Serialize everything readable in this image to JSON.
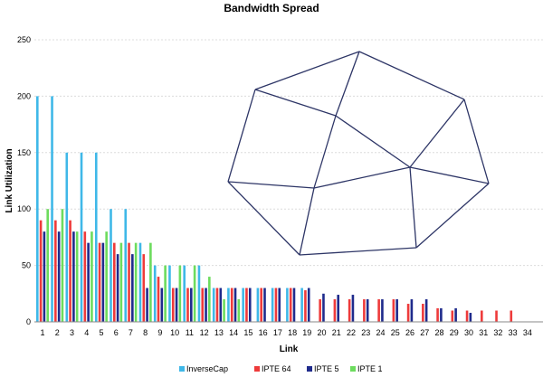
{
  "chart_data": {
    "type": "bar",
    "title": "Bandwidth Spread",
    "xlabel": "Link",
    "ylabel": "Link Utilization",
    "ylim": [
      0,
      250
    ],
    "yticks": [
      0,
      50,
      100,
      150,
      200,
      250
    ],
    "grid": "horizontal",
    "legend_position": "bottom",
    "categories": [
      "1",
      "2",
      "3",
      "4",
      "5",
      "6",
      "7",
      "8",
      "9",
      "10",
      "11",
      "12",
      "13",
      "14",
      "15",
      "16",
      "17",
      "18",
      "19",
      "20",
      "21",
      "22",
      "23",
      "24",
      "25",
      "26",
      "27",
      "28",
      "29",
      "30",
      "31",
      "32",
      "33",
      "34"
    ],
    "series": [
      {
        "name": "InverseCap",
        "color": "#3fb8e8",
        "values": [
          200,
          200,
          150,
          150,
          150,
          100,
          100,
          70,
          50,
          50,
          50,
          50,
          30,
          30,
          30,
          30,
          30,
          30,
          30,
          null,
          null,
          null,
          null,
          null,
          null,
          null,
          null,
          null,
          null,
          null,
          null,
          null,
          null,
          null
        ]
      },
      {
        "name": "IPTE 64",
        "color": "#ee3b3b",
        "values": [
          90,
          90,
          90,
          80,
          70,
          70,
          70,
          60,
          40,
          30,
          30,
          30,
          30,
          30,
          30,
          30,
          30,
          30,
          28,
          20,
          20,
          20,
          20,
          20,
          20,
          16,
          16,
          12,
          10,
          10,
          10,
          10,
          10,
          null
        ]
      },
      {
        "name": "IPTE 5",
        "color": "#1f2b8c",
        "values": [
          80,
          80,
          80,
          70,
          70,
          60,
          60,
          30,
          30,
          30,
          30,
          30,
          30,
          30,
          30,
          30,
          30,
          30,
          30,
          25,
          24,
          24,
          20,
          20,
          20,
          20,
          20,
          12,
          12,
          8,
          null,
          null,
          null,
          null
        ]
      },
      {
        "name": "IPTE 1",
        "color": "#6ddc5e",
        "values": [
          100,
          100,
          80,
          80,
          80,
          70,
          70,
          70,
          50,
          50,
          50,
          40,
          20,
          20,
          null,
          null,
          null,
          null,
          null,
          null,
          null,
          null,
          null,
          null,
          null,
          null,
          null,
          null,
          null,
          null,
          null,
          null,
          null,
          null
        ]
      }
    ]
  },
  "overlay": {
    "type": "network-graph",
    "color": "#2d3566"
  }
}
